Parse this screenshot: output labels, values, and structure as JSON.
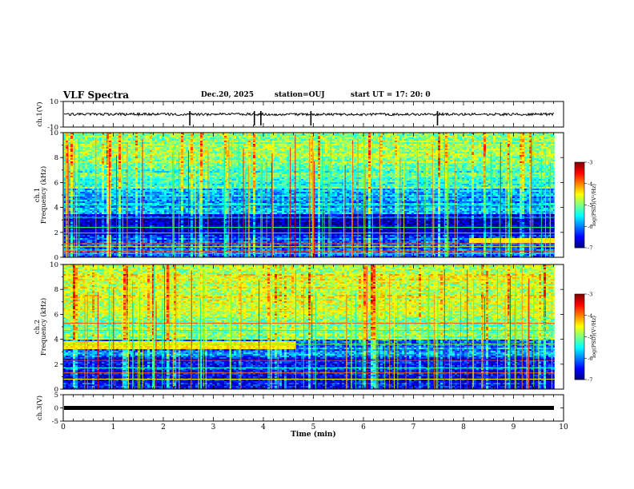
{
  "header": {
    "title": "VLF Spectra",
    "date": "Dec.20, 2025",
    "station": "station=OUJ",
    "start": "start  UT  =   17: 20: 0"
  },
  "chart_data": [
    {
      "type": "line",
      "name": "ch1-waveform",
      "ylabel": "ch.1(V)",
      "ylim": [
        -10,
        10
      ],
      "yticks": [
        "10",
        "-10"
      ],
      "xlim": [
        0,
        10
      ],
      "baseline": 0,
      "spike_times_min": [
        2.53,
        3.82,
        3.95,
        4.95,
        7.48
      ]
    },
    {
      "type": "heatmap",
      "name": "ch1-spectrogram",
      "ylabel": "Frequency (kHz)",
      "channel_label": "ch.1",
      "ylim": [
        0,
        10
      ],
      "yticks": [
        "0",
        "2",
        "4",
        "6",
        "8",
        "10"
      ],
      "xlim": [
        0,
        9.82
      ],
      "colorbar": {
        "label": "log(PSD)(V²/Hz)",
        "min": -7,
        "max": -3,
        "ticks": [
          "-3",
          "-4",
          "-5",
          "-6",
          "-7"
        ]
      }
    },
    {
      "type": "heatmap",
      "name": "ch2-spectrogram",
      "ylabel": "Frequency (kHz)",
      "channel_label": "ch.2",
      "ylim": [
        0,
        10
      ],
      "yticks": [
        "0",
        "2",
        "4",
        "6",
        "8",
        "10"
      ],
      "xlim": [
        0,
        9.82
      ],
      "colorbar": {
        "label": "log(PSD)(V²/Hz)",
        "min": -7,
        "max": -3,
        "ticks": [
          "-3",
          "-4",
          "-5",
          "-6",
          "-7"
        ]
      }
    },
    {
      "type": "line",
      "name": "ch3-waveform",
      "ylabel": "ch.3(V)",
      "ylim": [
        -5,
        5
      ],
      "yticks": [
        "5",
        "0",
        "-5"
      ],
      "xlim": [
        0,
        10
      ],
      "baseline": 0
    }
  ],
  "xaxis": {
    "label": "Time (min)",
    "ticks": [
      "0",
      "1",
      "2",
      "3",
      "4",
      "5",
      "6",
      "7",
      "8",
      "9",
      "10"
    ]
  }
}
